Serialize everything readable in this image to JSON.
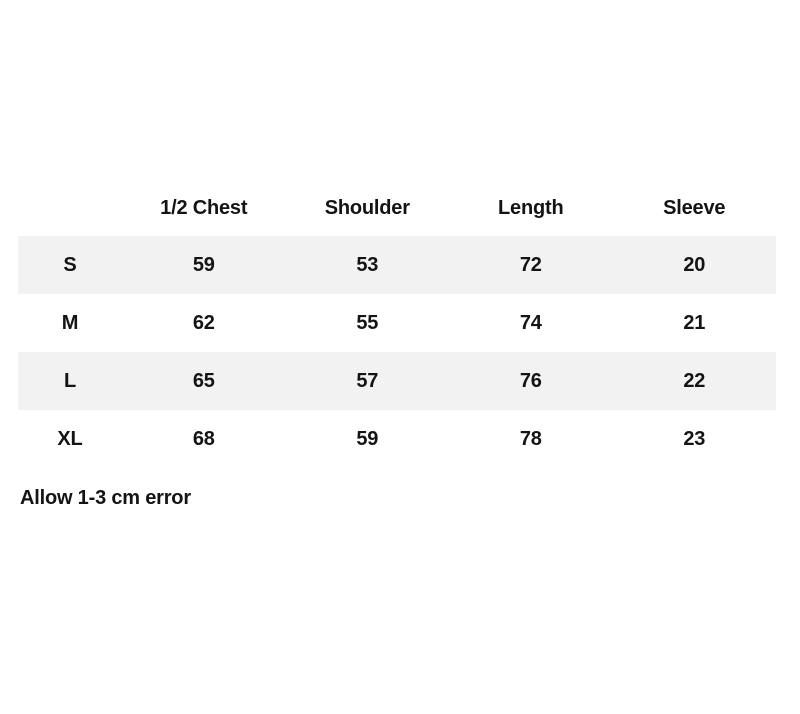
{
  "table": {
    "headers": [
      "1/2 Chest",
      "Shoulder",
      "Length",
      "Sleeve"
    ],
    "rows": [
      {
        "label": "S",
        "values": [
          "59",
          "53",
          "72",
          "20"
        ]
      },
      {
        "label": "M",
        "values": [
          "62",
          "55",
          "74",
          "21"
        ]
      },
      {
        "label": "L",
        "values": [
          "65",
          "57",
          "76",
          "22"
        ]
      },
      {
        "label": "XL",
        "values": [
          "68",
          "59",
          "78",
          "23"
        ]
      }
    ],
    "note": "Allow 1-3 cm error"
  },
  "colors": {
    "background": "#ffffff",
    "row_stripe": "#f2f2f2",
    "text": "#141414"
  }
}
